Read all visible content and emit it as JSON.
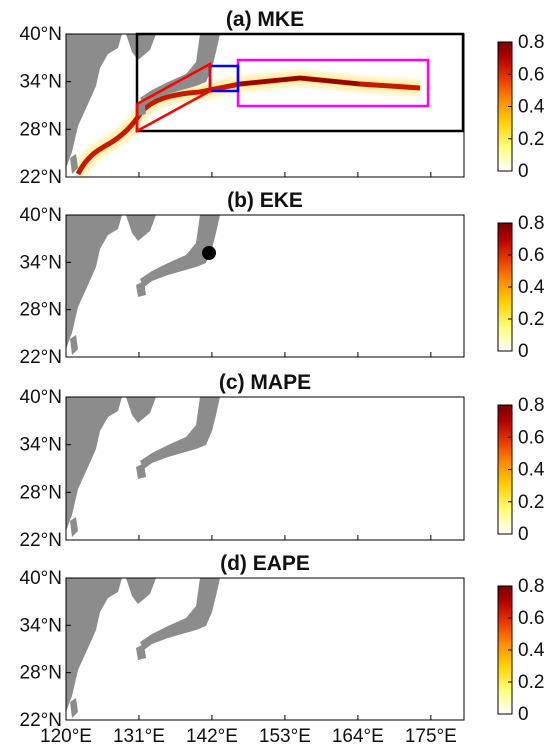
{
  "chart_data": [
    {
      "type": "heatmap",
      "title": "(a) MKE",
      "x_ticks": [
        "120°E",
        "131°E",
        "142°E",
        "153°E",
        "164°E",
        "175°E"
      ],
      "y_ticks": [
        "40°N",
        "34°N",
        "28°N",
        "22°N"
      ],
      "xlim": [
        120,
        180
      ],
      "ylim": [
        22,
        40
      ],
      "colorbar_ticks": [
        "0.8",
        "0.6",
        "0.4",
        "0.2",
        "0"
      ],
      "colorbar_range": [
        0,
        0.8
      ],
      "regions": [
        {
          "color": "#000000",
          "lon": [
            130.5,
            180
          ],
          "lat": [
            28.5,
            40
          ]
        },
        {
          "color": "#ff00ff",
          "lon": [
            145,
            170
          ],
          "lat": [
            31.5,
            37
          ]
        },
        {
          "color": "#0000ff",
          "lon": [
            141,
            145
          ],
          "lat": [
            33,
            36
          ]
        },
        {
          "color": "#ff0000",
          "shape": "parallelogram"
        }
      ]
    },
    {
      "type": "heatmap",
      "title": "(b) EKE",
      "x_ticks": [
        "120°E",
        "131°E",
        "142°E",
        "153°E",
        "164°E",
        "175°E"
      ],
      "y_ticks": [
        "40°N",
        "34°N",
        "28°N",
        "22°N"
      ],
      "xlim": [
        120,
        180
      ],
      "ylim": [
        22,
        40
      ],
      "colorbar_ticks": [
        "0.8",
        "0.6",
        "0.4",
        "0.2",
        "0"
      ],
      "colorbar_range": [
        0,
        0.8
      ],
      "marker": {
        "lon": 141,
        "lat": 35.2
      }
    },
    {
      "type": "heatmap",
      "title": "(c) MAPE",
      "x_ticks": [
        "120°E",
        "131°E",
        "142°E",
        "153°E",
        "164°E",
        "175°E"
      ],
      "y_ticks": [
        "40°N",
        "34°N",
        "28°N",
        "22°N"
      ],
      "xlim": [
        120,
        180
      ],
      "ylim": [
        22,
        40
      ],
      "colorbar_ticks": [
        "0.8",
        "0.6",
        "0.4",
        "0.2",
        "0"
      ],
      "colorbar_range": [
        0,
        0.8
      ]
    },
    {
      "type": "heatmap",
      "title": "(d) EAPE",
      "x_ticks": [
        "120°E",
        "131°E",
        "142°E",
        "153°E",
        "164°E",
        "175°E"
      ],
      "y_ticks": [
        "40°N",
        "34°N",
        "28°N",
        "22°N"
      ],
      "xlim": [
        120,
        180
      ],
      "ylim": [
        22,
        40
      ],
      "colorbar_ticks": [
        "0.8",
        "0.6",
        "0.4",
        "0.2",
        "0"
      ],
      "colorbar_range": [
        0,
        0.8
      ]
    }
  ],
  "colors": {
    "land": "#8c8c8c",
    "cmap": [
      "#ffffff",
      "#ffff80",
      "#ffd000",
      "#ff8c00",
      "#e83800",
      "#b00000",
      "#7a0000"
    ]
  }
}
